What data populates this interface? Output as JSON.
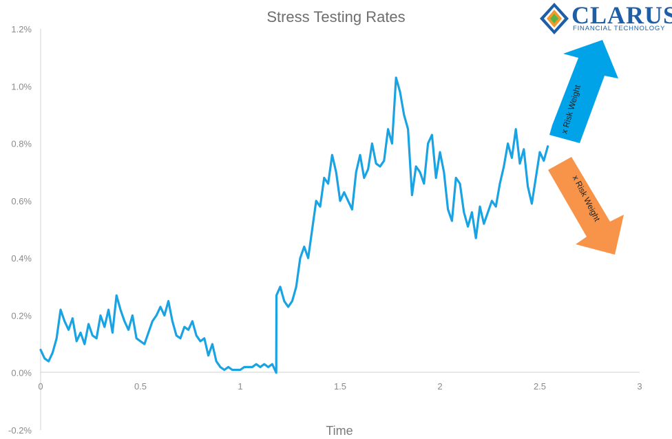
{
  "logo": {
    "word": "CLARUS",
    "subtitle": "FINANCIAL TECHNOLOGY",
    "colors": {
      "brand_blue": "#1d5fa6",
      "orange": "#f39a2b",
      "green": "#5ab548"
    }
  },
  "arrows": {
    "up": {
      "label": "x Risk Weight",
      "color": "#00a3e8",
      "direction": "up"
    },
    "down": {
      "label": "x Risk Weight",
      "color": "#f7944a",
      "direction": "down"
    }
  },
  "chart_data": {
    "type": "line",
    "title": "Stress Testing Rates",
    "xlabel": "Time",
    "ylabel": "",
    "xlim": [
      0,
      3
    ],
    "ylim": [
      -0.2,
      1.2
    ],
    "x_ticks": [
      "0",
      "0.5",
      "1",
      "1.5",
      "2",
      "2.5",
      "3"
    ],
    "y_ticks": [
      "-0.2%",
      "0.0%",
      "0.2%",
      "0.4%",
      "0.6%",
      "0.8%",
      "1.0%",
      "1.2%"
    ],
    "grid": false,
    "legend": "none",
    "series": [
      {
        "color": "#1aa3e3",
        "x": [
          0,
          0.02,
          0.04,
          0.06,
          0.08,
          0.1,
          0.12,
          0.14,
          0.16,
          0.18,
          0.2,
          0.22,
          0.24,
          0.26,
          0.28,
          0.3,
          0.32,
          0.34,
          0.36,
          0.38,
          0.4,
          0.42,
          0.44,
          0.46,
          0.48,
          0.5,
          0.52,
          0.54,
          0.56,
          0.58,
          0.6,
          0.62,
          0.64,
          0.66,
          0.68,
          0.7,
          0.72,
          0.74,
          0.76,
          0.78,
          0.8,
          0.82,
          0.84,
          0.86,
          0.88,
          0.9,
          0.92,
          0.94,
          0.96,
          0.98,
          1.0,
          1.02,
          1.04,
          1.06,
          1.08,
          1.1,
          1.12,
          1.14,
          1.16,
          1.18,
          1.181,
          1.2,
          1.22,
          1.24,
          1.26,
          1.28,
          1.3,
          1.32,
          1.34,
          1.36,
          1.38,
          1.4,
          1.42,
          1.44,
          1.46,
          1.48,
          1.5,
          1.52,
          1.54,
          1.56,
          1.58,
          1.6,
          1.62,
          1.64,
          1.66,
          1.68,
          1.7,
          1.72,
          1.74,
          1.76,
          1.78,
          1.8,
          1.82,
          1.84,
          1.86,
          1.88,
          1.9,
          1.92,
          1.94,
          1.96,
          1.98,
          2.0,
          2.02,
          2.04,
          2.06,
          2.08,
          2.1,
          2.12,
          2.14,
          2.16,
          2.18,
          2.2,
          2.22,
          2.24,
          2.26,
          2.28,
          2.3,
          2.32,
          2.34,
          2.36,
          2.38,
          2.4,
          2.42,
          2.44,
          2.46,
          2.48,
          2.5,
          2.52,
          2.54
        ],
        "y": [
          0.08,
          0.05,
          0.04,
          0.07,
          0.12,
          0.22,
          0.18,
          0.15,
          0.19,
          0.11,
          0.14,
          0.1,
          0.17,
          0.13,
          0.12,
          0.2,
          0.16,
          0.22,
          0.14,
          0.27,
          0.22,
          0.18,
          0.15,
          0.2,
          0.12,
          0.11,
          0.1,
          0.14,
          0.18,
          0.2,
          0.23,
          0.2,
          0.25,
          0.18,
          0.13,
          0.12,
          0.16,
          0.15,
          0.18,
          0.13,
          0.11,
          0.12,
          0.06,
          0.1,
          0.04,
          0.02,
          0.01,
          0.02,
          0.01,
          0.01,
          0.01,
          0.02,
          0.02,
          0.02,
          0.03,
          0.02,
          0.03,
          0.02,
          0.03,
          0.0,
          0.27,
          0.3,
          0.25,
          0.23,
          0.25,
          0.3,
          0.4,
          0.44,
          0.4,
          0.5,
          0.6,
          0.58,
          0.68,
          0.66,
          0.76,
          0.7,
          0.6,
          0.63,
          0.6,
          0.57,
          0.7,
          0.76,
          0.68,
          0.71,
          0.8,
          0.73,
          0.72,
          0.74,
          0.85,
          0.8,
          1.03,
          0.98,
          0.9,
          0.85,
          0.62,
          0.72,
          0.7,
          0.66,
          0.8,
          0.83,
          0.68,
          0.77,
          0.7,
          0.57,
          0.53,
          0.68,
          0.66,
          0.56,
          0.51,
          0.56,
          0.47,
          0.58,
          0.52,
          0.56,
          0.6,
          0.58,
          0.66,
          0.72,
          0.8,
          0.75,
          0.85,
          0.73,
          0.78,
          0.65,
          0.59,
          0.68,
          0.77,
          0.74,
          0.79
        ]
      }
    ]
  }
}
